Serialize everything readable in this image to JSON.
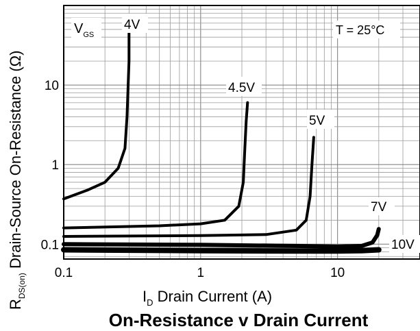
{
  "chart_data": {
    "type": "line",
    "title": "On-Resistance v Drain Current",
    "xlabel_main": "I",
    "xlabel_sub": "D",
    "xlabel_rest": " Drain Current (A)",
    "ylabel_main": "R",
    "ylabel_sub": "DS(on)",
    "ylabel_rest": " Drain-Source On-Resistance (Ω)",
    "x_scale": "log",
    "y_scale": "log",
    "xlim": [
      0.1,
      40
    ],
    "ylim": [
      0.065,
      100
    ],
    "x_ticks": [
      {
        "value": 0.1,
        "label": "0.1"
      },
      {
        "value": 1,
        "label": "1"
      },
      {
        "value": 10,
        "label": "10"
      }
    ],
    "y_ticks": [
      {
        "value": 0.1,
        "label": "0.1"
      },
      {
        "value": 1,
        "label": "1"
      },
      {
        "value": 10,
        "label": "10"
      }
    ],
    "grid": true,
    "legend_title_main": "V",
    "legend_title_sub": "GS",
    "annotation": "T = 25°C",
    "series": [
      {
        "name": "4V",
        "x": [
          0.1,
          0.15,
          0.2,
          0.25,
          0.28,
          0.29,
          0.3,
          0.3
        ],
        "y": [
          0.37,
          0.48,
          0.6,
          0.9,
          1.6,
          4,
          20,
          50
        ]
      },
      {
        "name": "4.5V",
        "x": [
          0.1,
          0.5,
          1,
          1.5,
          1.9,
          2.05,
          2.1,
          2.15,
          2.2
        ],
        "y": [
          0.16,
          0.17,
          0.18,
          0.2,
          0.3,
          0.6,
          1.5,
          3.5,
          6
        ]
      },
      {
        "name": "5V",
        "x": [
          0.1,
          1,
          3,
          5,
          5.9,
          6.3,
          6.5,
          6.7
        ],
        "y": [
          0.125,
          0.128,
          0.132,
          0.15,
          0.2,
          0.4,
          1,
          2.2
        ]
      },
      {
        "name": "7V",
        "x": [
          0.1,
          1,
          5,
          10,
          15,
          18,
          19.5,
          20
        ],
        "y": [
          0.1,
          0.098,
          0.095,
          0.093,
          0.095,
          0.105,
          0.13,
          0.155
        ]
      },
      {
        "name": "10V",
        "x": [
          0.1,
          1,
          5,
          10,
          15,
          20
        ],
        "y": [
          0.085,
          0.083,
          0.082,
          0.082,
          0.083,
          0.085
        ]
      }
    ]
  }
}
